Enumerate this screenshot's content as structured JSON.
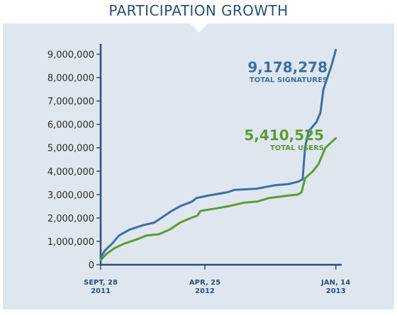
{
  "chart_data": {
    "type": "line",
    "title": "PARTICIPATION GROWTH",
    "ylim": [
      0,
      9500000
    ],
    "yticks": [
      0,
      1000000,
      2000000,
      3000000,
      4000000,
      5000000,
      6000000,
      7000000,
      8000000,
      9000000
    ],
    "ytick_labels": [
      "0",
      "1,000,000",
      "2,000,000",
      "3,000,000",
      "4,000,000",
      "5,000,000",
      "6,000,000",
      "7,000,000",
      "8,000,000",
      "9,000,000"
    ],
    "xlim": [
      "2011-09-28",
      "2013-01-23"
    ],
    "xticks": [
      {
        "date": "2011-09-28",
        "line1": "SEPT, 28",
        "line2": "2011"
      },
      {
        "date": "2012-04-25",
        "line1": "APR, 25",
        "line2": "2012"
      },
      {
        "date": "2013-01-14",
        "line1": "JAN, 14",
        "line2": "2013"
      }
    ],
    "series": [
      {
        "name": "TOTAL SIGNATURES",
        "label_value": "9,178,278",
        "color": "#3f6f9f",
        "points": [
          [
            "2011-09-28",
            300000
          ],
          [
            "2011-10-06",
            600000
          ],
          [
            "2011-10-21",
            900000
          ],
          [
            "2011-11-04",
            1250000
          ],
          [
            "2011-11-25",
            1500000
          ],
          [
            "2011-12-24",
            1700000
          ],
          [
            "2012-01-14",
            1800000
          ],
          [
            "2012-02-18",
            2300000
          ],
          [
            "2012-03-06",
            2500000
          ],
          [
            "2012-03-30",
            2700000
          ],
          [
            "2012-04-08",
            2850000
          ],
          [
            "2012-04-30",
            2950000
          ],
          [
            "2012-06-10",
            3100000
          ],
          [
            "2012-06-24",
            3200000
          ],
          [
            "2012-08-07",
            3250000
          ],
          [
            "2012-09-14",
            3400000
          ],
          [
            "2012-10-11",
            3450000
          ],
          [
            "2012-10-30",
            3550000
          ],
          [
            "2012-11-08",
            3650000
          ],
          [
            "2012-11-13",
            5000000
          ],
          [
            "2012-11-20",
            5700000
          ],
          [
            "2012-12-06",
            6100000
          ],
          [
            "2012-12-14",
            6500000
          ],
          [
            "2012-12-20",
            7500000
          ],
          [
            "2013-01-05",
            8500000
          ],
          [
            "2013-01-14",
            9178278
          ]
        ]
      },
      {
        "name": "TOTAL USERS",
        "label_value": "5,410,525",
        "color": "#5f9a34",
        "points": [
          [
            "2011-09-28",
            200000
          ],
          [
            "2011-10-09",
            450000
          ],
          [
            "2011-10-25",
            700000
          ],
          [
            "2011-11-14",
            900000
          ],
          [
            "2011-12-12",
            1100000
          ],
          [
            "2011-12-29",
            1250000
          ],
          [
            "2012-01-23",
            1300000
          ],
          [
            "2012-02-14",
            1500000
          ],
          [
            "2012-03-06",
            1800000
          ],
          [
            "2012-03-28",
            2000000
          ],
          [
            "2012-04-10",
            2100000
          ],
          [
            "2012-04-16",
            2300000
          ],
          [
            "2012-05-16",
            2400000
          ],
          [
            "2012-06-11",
            2500000
          ],
          [
            "2012-07-12",
            2650000
          ],
          [
            "2012-08-08",
            2700000
          ],
          [
            "2012-09-01",
            2850000
          ],
          [
            "2012-10-08",
            2950000
          ],
          [
            "2012-10-30",
            3000000
          ],
          [
            "2012-11-06",
            3100000
          ],
          [
            "2012-11-13",
            3700000
          ],
          [
            "2012-11-29",
            4000000
          ],
          [
            "2012-12-10",
            4300000
          ],
          [
            "2012-12-24",
            5000000
          ],
          [
            "2013-01-14",
            5410525
          ]
        ]
      }
    ],
    "grid": false,
    "legend": "inline labels near line ends"
  },
  "colors": {
    "panel": "#dee7f0",
    "axis": "#2c4f78",
    "title": "#2c4f78"
  }
}
